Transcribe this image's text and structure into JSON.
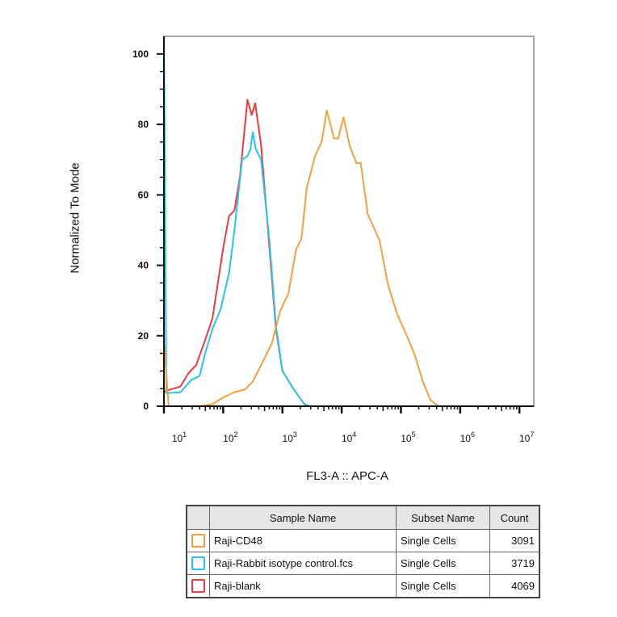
{
  "chart_data": {
    "type": "line",
    "title": "",
    "xlabel": "FL3-A :: APC-A",
    "ylabel": "Normalized To Mode",
    "xscale": "log",
    "xlim": [
      10,
      17500000
    ],
    "ylim": [
      0,
      105
    ],
    "x_ticks": [
      {
        "base": "10",
        "exp": "1",
        "value": 10
      },
      {
        "base": "10",
        "exp": "2",
        "value": 100
      },
      {
        "base": "10",
        "exp": "3",
        "value": 1000
      },
      {
        "base": "10",
        "exp": "4",
        "value": 10000
      },
      {
        "base": "10",
        "exp": "5",
        "value": 100000
      },
      {
        "base": "10",
        "exp": "6",
        "value": 1000000
      },
      {
        "base": "10",
        "exp": "7",
        "value": 10000000
      }
    ],
    "y_ticks": [
      0,
      20,
      40,
      60,
      80,
      100
    ],
    "grid": false,
    "legend_placement": "bottom table",
    "series": [
      {
        "name": "Raji-CD48",
        "color": "#f5a03c",
        "x": [
          10,
          12,
          40,
          66,
          100,
          155,
          234,
          316,
          437,
          661,
          912,
          1259,
          1698,
          2089,
          2570,
          3548,
          4571,
          5623,
          7413,
          8710,
          10715,
          13804,
          17783,
          20893,
          27542,
          43652,
          60256,
          87096,
          125893,
          169824,
          234423,
          316228,
          436516,
          17378008
        ],
        "y": [
          18,
          0,
          0,
          0.6,
          2.5,
          4,
          4.8,
          7,
          11.7,
          17.8,
          27,
          32,
          44.5,
          47.6,
          62,
          71,
          75,
          84,
          76,
          76,
          82,
          73.6,
          69,
          69,
          54.5,
          47,
          34.6,
          26,
          20,
          14.7,
          7,
          1.7,
          0,
          0
        ]
      },
      {
        "name": "Raji-Rabbit isotype control.fcs",
        "color": "#27c4ef",
        "x": [
          10,
          11,
          19,
          29,
          40,
          49,
          66,
          91,
          126,
          155,
          209,
          257,
          288,
          316,
          355,
          437,
          603,
          776,
          1000,
          1549,
          2344,
          2884,
          17378008
        ],
        "y": [
          105,
          3.7,
          4,
          7.5,
          8.6,
          14.7,
          22,
          27.7,
          38,
          50,
          70,
          71,
          73,
          77.8,
          73,
          70,
          47,
          23,
          10,
          4.8,
          0.6,
          0,
          0
        ]
      },
      {
        "name": "Raji-blank",
        "color": "#ee3a3a",
        "x": [
          10,
          11,
          19,
          26,
          35,
          49,
          66,
          100,
          126,
          155,
          191,
          257,
          302,
          347,
          437,
          603,
          776,
          1000,
          1549,
          2344,
          2884,
          17378008
        ],
        "y": [
          4,
          4.4,
          5.6,
          9.4,
          11.7,
          18.5,
          25,
          45,
          54,
          55.6,
          65,
          87,
          82.7,
          86,
          74,
          45,
          22,
          10,
          4.8,
          0.6,
          0,
          0
        ]
      }
    ]
  },
  "legend_table": {
    "headers": [
      "Sample Name",
      "Subset Name",
      "Count"
    ],
    "rows": [
      {
        "sample": "Raji-CD48",
        "subset": "Single Cells",
        "count": "3091",
        "color": "#f5a03c"
      },
      {
        "sample": "Raji-Rabbit isotype control.fcs",
        "subset": "Single Cells",
        "count": "3719",
        "color": "#27c4ef"
      },
      {
        "sample": "Raji-blank",
        "subset": "Single Cells",
        "count": "4069",
        "color": "#ee3a3a"
      }
    ]
  }
}
